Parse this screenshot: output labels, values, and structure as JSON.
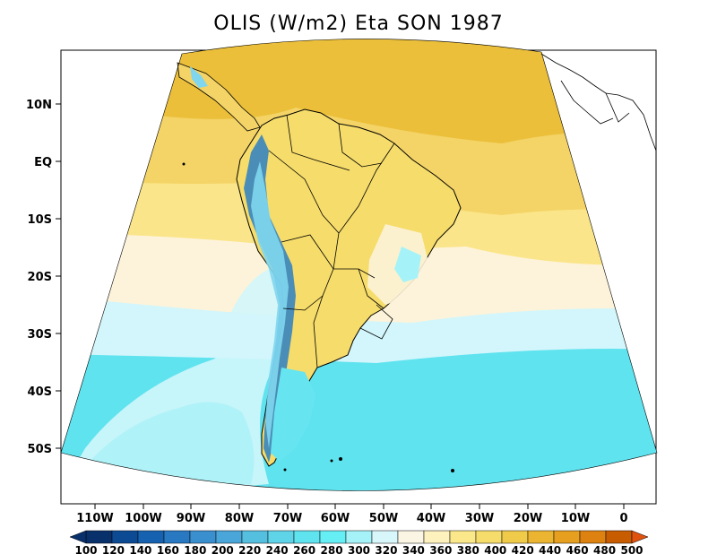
{
  "title": "OLIS (W/m2) Eta SON 1987",
  "lat_labels": [
    "10N",
    "EQ",
    "10S",
    "20S",
    "30S",
    "40S",
    "50S"
  ],
  "lon_labels": [
    "110W",
    "100W",
    "90W",
    "80W",
    "70W",
    "60W",
    "50W",
    "40W",
    "30W",
    "20W",
    "10W",
    "0"
  ],
  "colorbar": {
    "values": [
      "100",
      "120",
      "140",
      "160",
      "180",
      "200",
      "220",
      "240",
      "260",
      "280",
      "300",
      "320",
      "340",
      "360",
      "380",
      "400",
      "420",
      "440",
      "460",
      "480",
      "500"
    ],
    "colors": [
      "#08306b",
      "#0d4a94",
      "#1762b0",
      "#2878c2",
      "#3a8fce",
      "#4aa6d8",
      "#55bfe0",
      "#5fd3e8",
      "#5ee3ef",
      "#66eef5",
      "#a5f3f8",
      "#d8f7fb",
      "#fbf6e4",
      "#fdf1bd",
      "#fbe88a",
      "#f6dc6a",
      "#f0cb4a",
      "#ebb531",
      "#e69f1e",
      "#dd8210",
      "#c85c00"
    ]
  }
}
